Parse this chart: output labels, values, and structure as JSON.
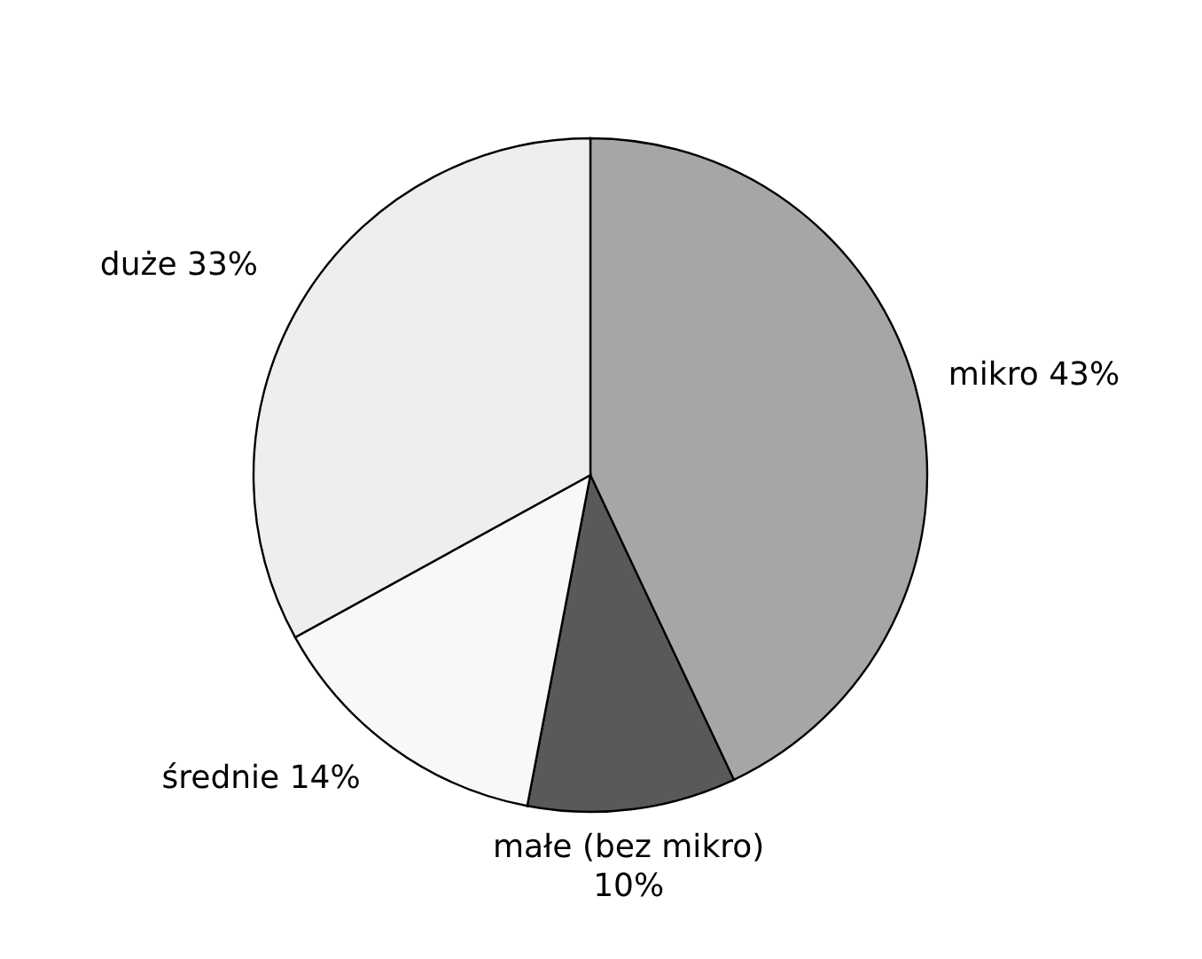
{
  "chart_data": {
    "type": "pie",
    "categories": [
      "mikro",
      "małe (bez mikro)",
      "średnie",
      "duże"
    ],
    "values": [
      43,
      10,
      14,
      33
    ],
    "value_labels": [
      "43%",
      "10%",
      "14%",
      "33%"
    ],
    "colors": [
      "#a6a6a6",
      "#595959",
      "#f8f8f8",
      "#eeeeee"
    ],
    "legend": false
  }
}
